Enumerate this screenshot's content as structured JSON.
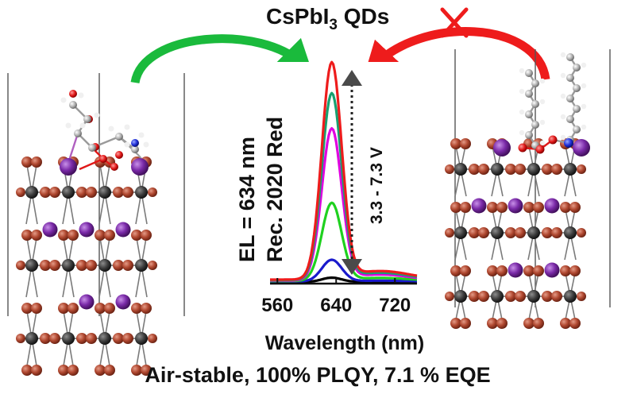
{
  "title": {
    "main": "CsPbI",
    "sub": "3",
    "tail": " QDs"
  },
  "labels": {
    "el": "EL = 634 nm",
    "rec": "Rec. 2020 Red",
    "voltage": "3.3 - 7.3 V",
    "x_axis": "Wavelength (nm)",
    "footer": "Air-stable, 100% PLQY, 7.1 % EQE"
  },
  "chart_data": {
    "type": "line",
    "xlabel": "Wavelength (nm)",
    "ylabel": "",
    "x_ticks": [
      560,
      640,
      720
    ],
    "xlim": [
      550,
      750
    ],
    "peak_nm": 634,
    "series": [
      {
        "color": "#000000",
        "amplitude": 0.02
      },
      {
        "color": "#1a1acc",
        "amplitude": 0.1
      },
      {
        "color": "#1fd11f",
        "amplitude": 0.36
      },
      {
        "color": "#e000e0",
        "amplitude": 0.7
      },
      {
        "color": "#18a070",
        "amplitude": 0.86
      },
      {
        "color": "#ee1c1c",
        "amplitude": 1.0
      }
    ]
  },
  "colors": {
    "green_arrow": "#1aba3c",
    "red_arrow": "#ee1c1c",
    "cross": "#ee1c1c",
    "iodide": "#b04830",
    "lead": "#3b3b3b",
    "cesium": "#7a2aa8"
  }
}
